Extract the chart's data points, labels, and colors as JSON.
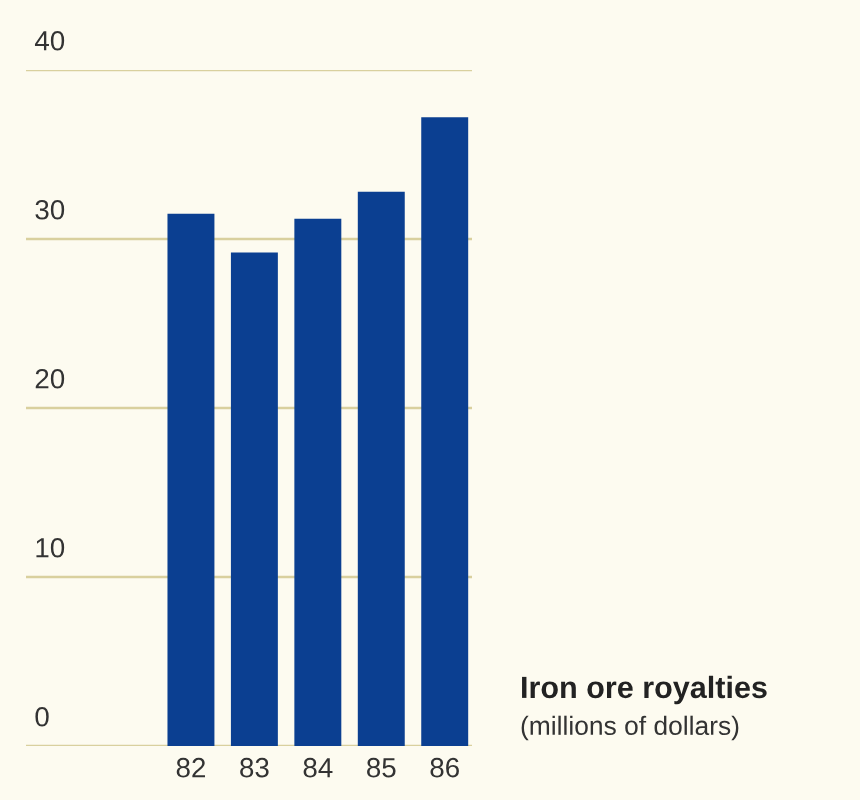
{
  "chart_data": {
    "type": "bar",
    "title": "Iron ore royalties",
    "subtitle": "(millions of dollars)",
    "categories": [
      "82",
      "83",
      "84",
      "85",
      "86"
    ],
    "values": [
      31.5,
      29.2,
      31.2,
      32.8,
      37.2
    ],
    "color": "#0b3f91",
    "ylim": [
      0,
      40
    ],
    "yticks": [
      0,
      10,
      20,
      30,
      40
    ],
    "grid": "y"
  }
}
